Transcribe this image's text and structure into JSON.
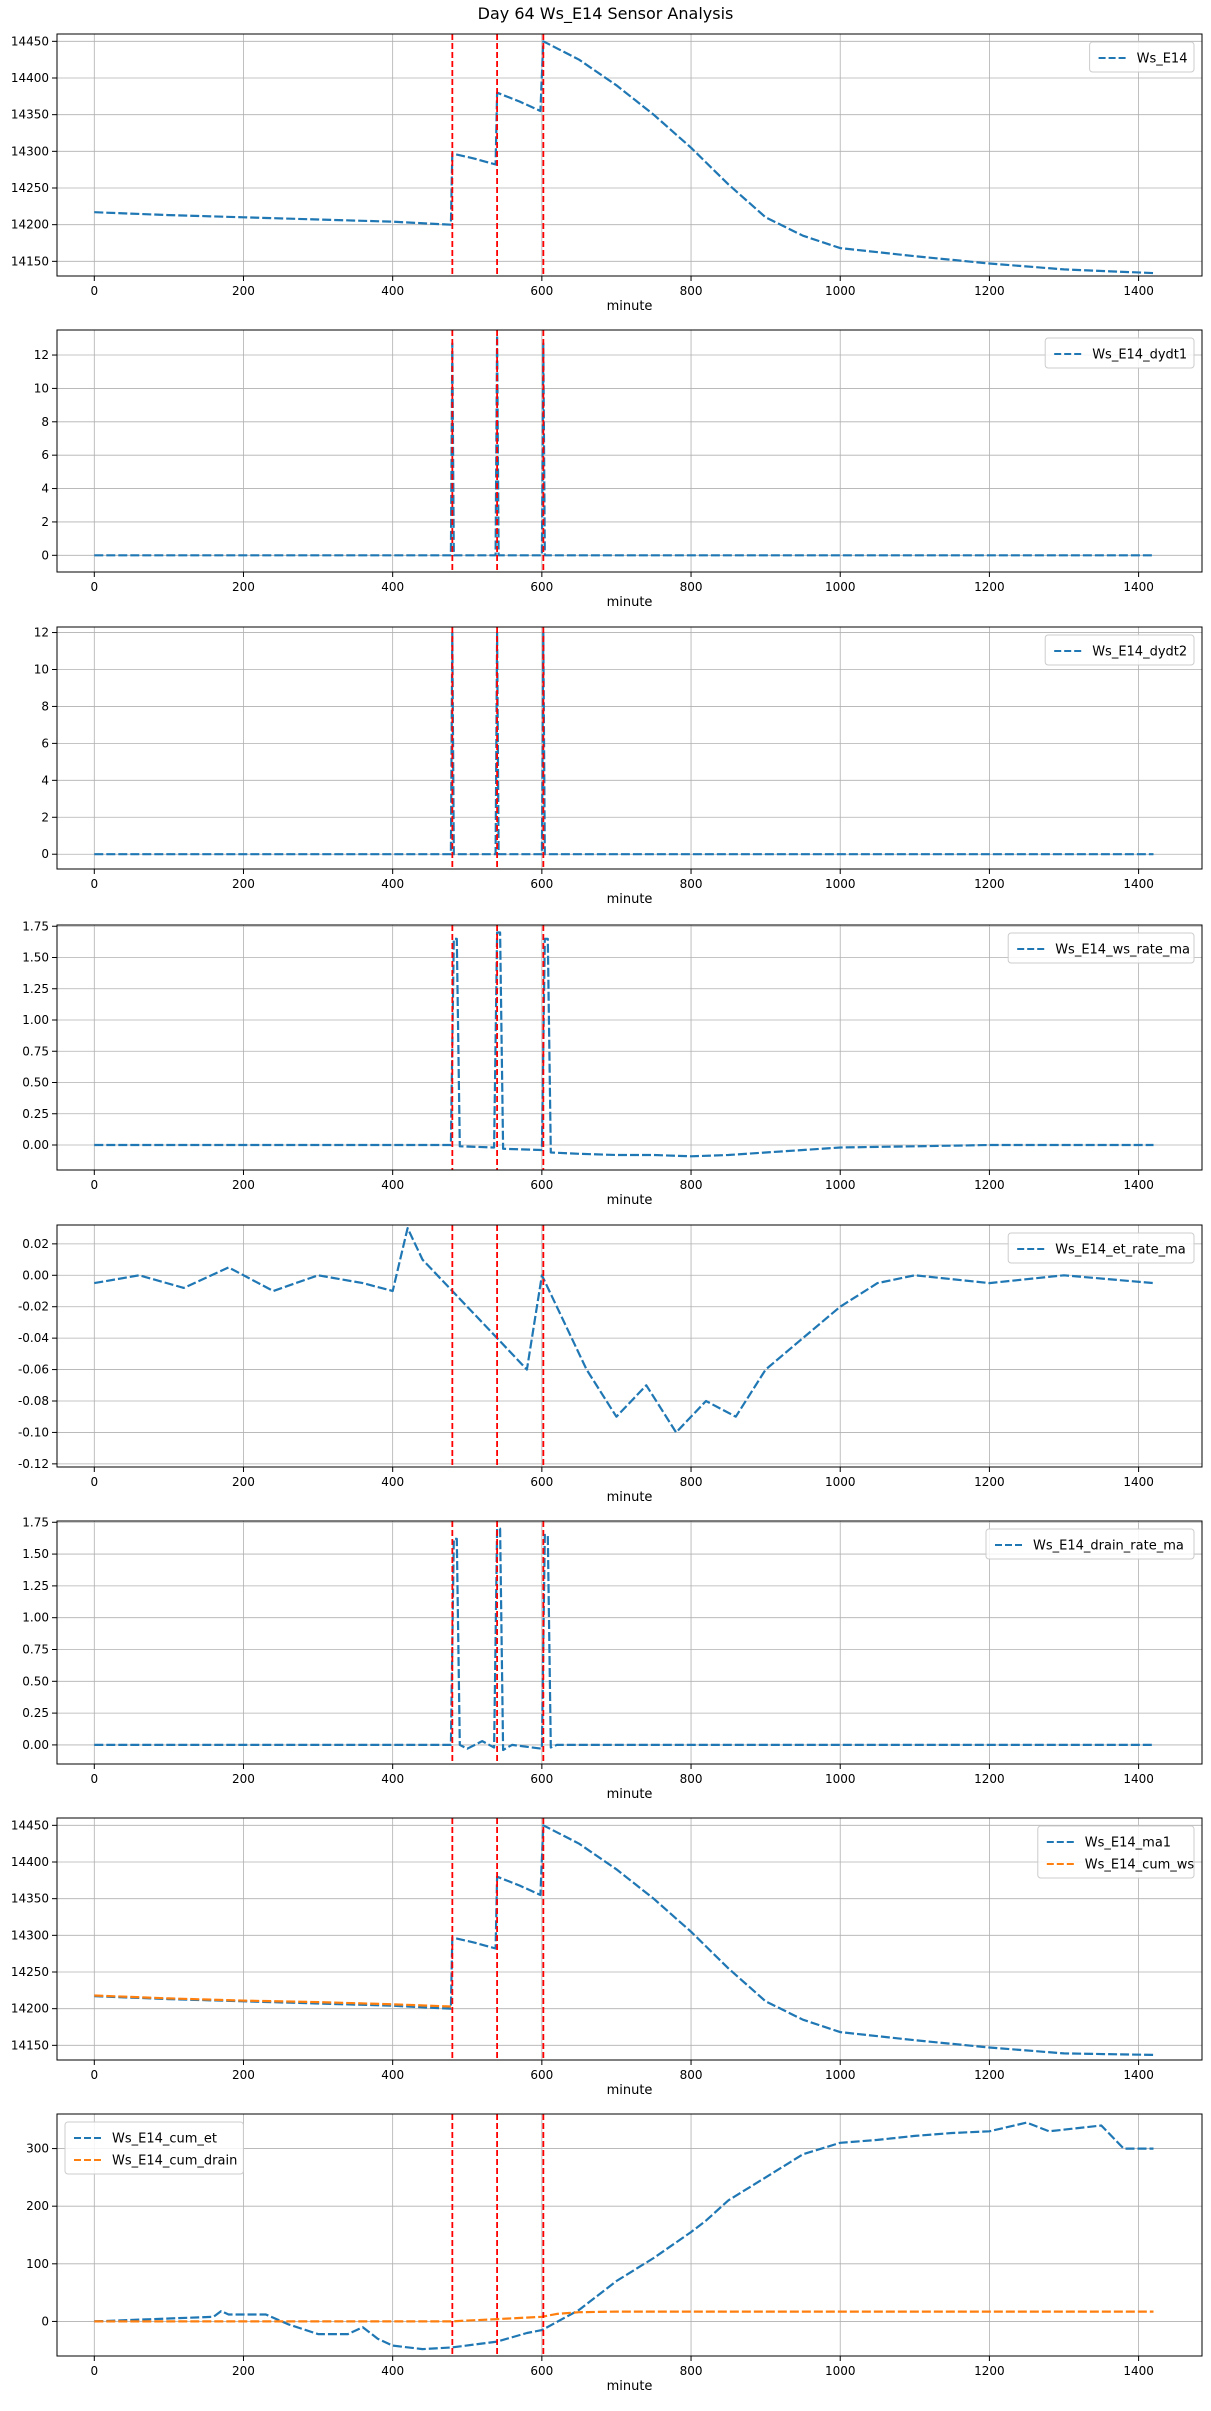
{
  "figure": {
    "title": "Day 64 Ws_E14 Sensor Analysis"
  },
  "colors": {
    "blue": "#1f77b4",
    "orange": "#ff7f0e",
    "event": "#ff0000",
    "grid": "#b0b0b0"
  },
  "chart_data": [
    {
      "type": "line",
      "xlabel": "minute",
      "xlim": [
        -50,
        1485
      ],
      "ylim": [
        14130,
        14460
      ],
      "xticks": [
        0,
        200,
        400,
        600,
        800,
        1000,
        1200,
        1400
      ],
      "yticks": [
        14150,
        14200,
        14250,
        14300,
        14350,
        14400,
        14450
      ],
      "grid": true,
      "legend_position": "upper-right",
      "event_lines": [
        480,
        540,
        602
      ],
      "series": [
        {
          "name": "Ws_E14",
          "color": "#1f77b4",
          "x": [
            0,
            100,
            200,
            300,
            400,
            478,
            480,
            510,
            538,
            540,
            570,
            598,
            602,
            650,
            700,
            750,
            800,
            850,
            900,
            950,
            1000,
            1100,
            1200,
            1300,
            1420
          ],
          "y": [
            14217,
            14213,
            14210,
            14207,
            14204,
            14200,
            14297,
            14290,
            14282,
            14380,
            14368,
            14355,
            14450,
            14425,
            14390,
            14350,
            14305,
            14255,
            14210,
            14185,
            14168,
            14157,
            14147,
            14139,
            14134
          ]
        }
      ]
    },
    {
      "type": "line",
      "xlabel": "minute",
      "xlim": [
        -50,
        1485
      ],
      "ylim": [
        -1,
        13.5
      ],
      "xticks": [
        0,
        200,
        400,
        600,
        800,
        1000,
        1200,
        1400
      ],
      "yticks": [
        0,
        2,
        4,
        6,
        8,
        10,
        12
      ],
      "grid": true,
      "legend_position": "upper-right",
      "event_lines": [
        480,
        540,
        602
      ],
      "series": [
        {
          "name": "Ws_E14_dydt1",
          "color": "#1f77b4",
          "x": [
            0,
            478,
            480,
            482,
            538,
            540,
            542,
            600,
            602,
            604,
            1420
          ],
          "y": [
            0,
            0,
            12.7,
            0,
            0,
            13.2,
            0,
            0,
            12.7,
            0,
            0
          ]
        }
      ]
    },
    {
      "type": "line",
      "xlabel": "minute",
      "xlim": [
        -50,
        1485
      ],
      "ylim": [
        -0.8,
        12.3
      ],
      "xticks": [
        0,
        200,
        400,
        600,
        800,
        1000,
        1200,
        1400
      ],
      "yticks": [
        0,
        2,
        4,
        6,
        8,
        10,
        12
      ],
      "grid": true,
      "legend_position": "upper-right",
      "event_lines": [
        480,
        540,
        602
      ],
      "series": [
        {
          "name": "Ws_E14_dydt2",
          "color": "#1f77b4",
          "x": [
            0,
            478,
            480,
            482,
            538,
            540,
            542,
            600,
            602,
            604,
            1420
          ],
          "y": [
            0,
            0,
            12.0,
            0,
            0,
            12.0,
            0,
            0,
            12.0,
            0,
            0
          ]
        }
      ]
    },
    {
      "type": "line",
      "xlabel": "minute",
      "xlim": [
        -50,
        1485
      ],
      "ylim": [
        -0.2,
        1.76
      ],
      "xticks": [
        0,
        200,
        400,
        600,
        800,
        1000,
        1200,
        1400
      ],
      "yticks": [
        0.0,
        0.25,
        0.5,
        0.75,
        1.0,
        1.25,
        1.5,
        1.75
      ],
      "grid": true,
      "legend_position": "upper-right",
      "event_lines": [
        480,
        540,
        602
      ],
      "series": [
        {
          "name": "Ws_E14_ws_rate_ma",
          "color": "#1f77b4",
          "x": [
            0,
            200,
            400,
            478,
            482,
            486,
            490,
            536,
            540,
            544,
            548,
            600,
            604,
            608,
            612,
            650,
            700,
            750,
            800,
            850,
            900,
            950,
            1000,
            1100,
            1200,
            1420
          ],
          "y": [
            0,
            0,
            0,
            0,
            1.65,
            1.65,
            -0.01,
            -0.02,
            1.7,
            1.7,
            -0.03,
            -0.04,
            1.65,
            1.65,
            -0.06,
            -0.07,
            -0.08,
            -0.08,
            -0.09,
            -0.08,
            -0.06,
            -0.04,
            -0.02,
            -0.01,
            0,
            0
          ]
        }
      ]
    },
    {
      "type": "line",
      "xlabel": "minute",
      "xlim": [
        -50,
        1485
      ],
      "ylim": [
        -0.122,
        0.032
      ],
      "xticks": [
        0,
        200,
        400,
        600,
        800,
        1000,
        1200,
        1400
      ],
      "yticks": [
        -0.12,
        -0.1,
        -0.08,
        -0.06,
        -0.04,
        -0.02,
        0.0,
        0.02
      ],
      "grid": true,
      "legend_position": "upper-right",
      "event_lines": [
        480,
        540,
        602
      ],
      "series": [
        {
          "name": "Ws_E14_et_rate_ma",
          "color": "#1f77b4",
          "x": [
            0,
            60,
            120,
            180,
            240,
            300,
            360,
            400,
            420,
            440,
            480,
            520,
            540,
            580,
            600,
            620,
            660,
            700,
            740,
            780,
            820,
            860,
            900,
            950,
            1000,
            1050,
            1100,
            1200,
            1300,
            1420
          ],
          "y": [
            -0.005,
            0.0,
            -0.008,
            0.005,
            -0.01,
            0.0,
            -0.005,
            -0.01,
            0.03,
            0.01,
            -0.01,
            -0.03,
            -0.04,
            -0.06,
            0.0,
            -0.02,
            -0.06,
            -0.09,
            -0.07,
            -0.1,
            -0.08,
            -0.09,
            -0.06,
            -0.04,
            -0.02,
            -0.005,
            0.0,
            -0.005,
            0.0,
            -0.005
          ]
        }
      ]
    },
    {
      "type": "line",
      "xlabel": "minute",
      "xlim": [
        -50,
        1485
      ],
      "ylim": [
        -0.15,
        1.76
      ],
      "xticks": [
        0,
        200,
        400,
        600,
        800,
        1000,
        1200,
        1400
      ],
      "yticks": [
        0.0,
        0.25,
        0.5,
        0.75,
        1.0,
        1.25,
        1.5,
        1.75
      ],
      "grid": true,
      "legend_position": "upper-right",
      "event_lines": [
        480,
        540,
        602
      ],
      "series": [
        {
          "name": "Ws_E14_drain_rate_ma",
          "color": "#1f77b4",
          "x": [
            0,
            478,
            482,
            486,
            490,
            500,
            520,
            536,
            540,
            544,
            548,
            560,
            600,
            604,
            608,
            612,
            620,
            700,
            1420
          ],
          "y": [
            0,
            0,
            1.62,
            1.62,
            0,
            -0.03,
            0.03,
            -0.02,
            1.7,
            1.7,
            -0.04,
            0.0,
            -0.03,
            1.65,
            1.65,
            -0.02,
            0.0,
            0,
            0
          ]
        }
      ]
    },
    {
      "type": "line",
      "xlabel": "minute",
      "xlim": [
        -50,
        1485
      ],
      "ylim": [
        14130,
        14460
      ],
      "xticks": [
        0,
        200,
        400,
        600,
        800,
        1000,
        1200,
        1400
      ],
      "yticks": [
        14150,
        14200,
        14250,
        14300,
        14350,
        14400,
        14450
      ],
      "grid": true,
      "legend_position": "upper-right",
      "event_lines": [
        480,
        540,
        602
      ],
      "series": [
        {
          "name": "Ws_E14_ma1",
          "color": "#1f77b4",
          "x": [
            0,
            100,
            200,
            300,
            400,
            478,
            480,
            510,
            538,
            540,
            570,
            598,
            602,
            650,
            700,
            750,
            800,
            850,
            900,
            950,
            1000,
            1100,
            1200,
            1300,
            1420
          ],
          "y": [
            14217,
            14213,
            14210,
            14207,
            14204,
            14200,
            14297,
            14290,
            14282,
            14380,
            14368,
            14355,
            14450,
            14425,
            14390,
            14350,
            14305,
            14255,
            14210,
            14185,
            14168,
            14157,
            14147,
            14139,
            14137
          ]
        },
        {
          "name": "Ws_E14_cum_ws",
          "color": "#ff7f0e",
          "x": [
            0,
            100,
            200,
            300,
            400,
            478
          ],
          "y": [
            14218,
            14214,
            14211,
            14209,
            14206,
            14203
          ]
        }
      ]
    },
    {
      "type": "line",
      "xlabel": "minute",
      "xlim": [
        -50,
        1485
      ],
      "ylim": [
        -60,
        360
      ],
      "xticks": [
        0,
        200,
        400,
        600,
        800,
        1000,
        1200,
        1400
      ],
      "yticks": [
        0,
        100,
        200,
        300
      ],
      "grid": true,
      "legend_position": "upper-left",
      "event_lines": [
        480,
        540,
        602
      ],
      "series": [
        {
          "name": "Ws_E14_cum_et",
          "color": "#1f77b4",
          "x": [
            0,
            100,
            160,
            170,
            180,
            230,
            260,
            300,
            340,
            360,
            380,
            400,
            440,
            480,
            540,
            580,
            600,
            650,
            700,
            750,
            800,
            820,
            850,
            900,
            950,
            1000,
            1050,
            1100,
            1150,
            1200,
            1250,
            1280,
            1350,
            1380,
            1420
          ],
          "y": [
            0,
            5,
            8,
            18,
            12,
            12,
            -5,
            -22,
            -22,
            -10,
            -30,
            -42,
            -48,
            -45,
            -35,
            -20,
            -15,
            20,
            70,
            110,
            155,
            175,
            210,
            250,
            290,
            310,
            315,
            322,
            327,
            330,
            345,
            330,
            340,
            300,
            300
          ]
        },
        {
          "name": "Ws_E14_cum_drain",
          "color": "#ff7f0e",
          "x": [
            0,
            200,
            478,
            540,
            600,
            620,
            650,
            700,
            800,
            1000,
            1200,
            1420
          ],
          "y": [
            0,
            0,
            0,
            4,
            8,
            13,
            16,
            17,
            17,
            17,
            17,
            17
          ]
        }
      ]
    }
  ]
}
